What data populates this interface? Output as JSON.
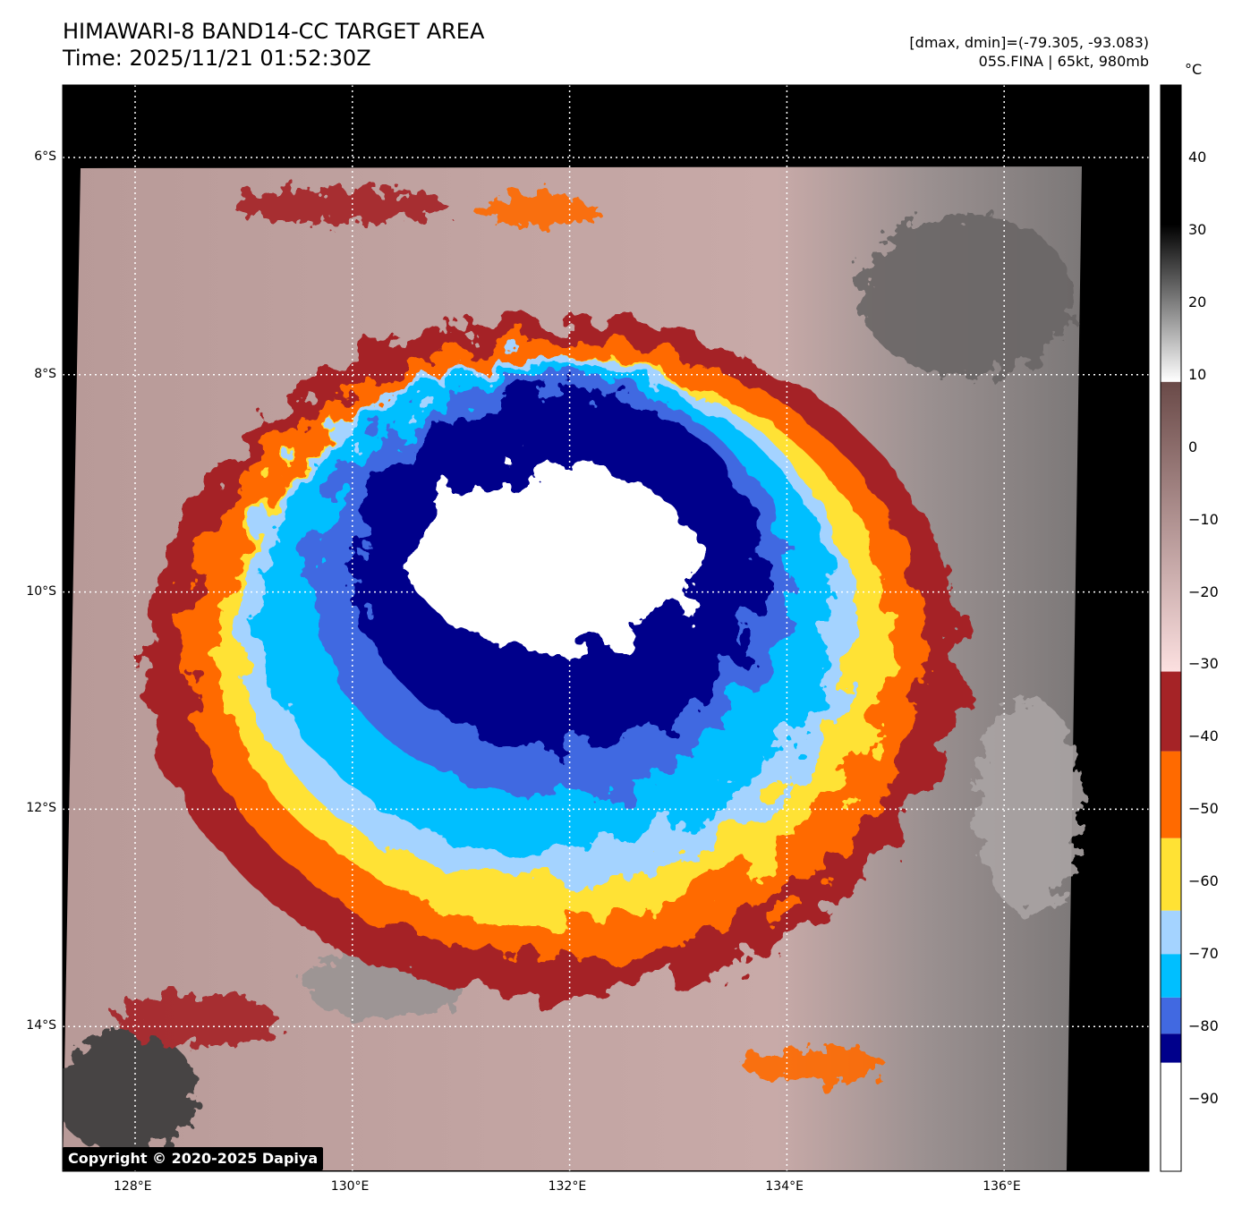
{
  "header": {
    "title": "HIMAWARI-8 BAND14-CC TARGET AREA",
    "time": "Time: 2025/11/21 01:52:30Z",
    "range_text": "[dmax, dmin]=(-79.305, -93.083)",
    "storm_text": "05S.FINA | 65kt, 980mb"
  },
  "map": {
    "lon_ticks": [
      {
        "value": 128,
        "label": "128°E"
      },
      {
        "value": 130,
        "label": "130°E"
      },
      {
        "value": 132,
        "label": "132°E"
      },
      {
        "value": 134,
        "label": "134°E"
      },
      {
        "value": 136,
        "label": "136°E"
      }
    ],
    "lat_ticks": [
      {
        "value": -6,
        "label": "6°S"
      },
      {
        "value": -8,
        "label": "8°S"
      },
      {
        "value": -10,
        "label": "10°S"
      },
      {
        "value": -12,
        "label": "12°S"
      },
      {
        "value": -14,
        "label": "14°S"
      }
    ],
    "copyright": "Copyright © 2020-2025 Dapiya"
  },
  "colorbar": {
    "unit": "°C",
    "range": [
      -100,
      50
    ],
    "ticks": [
      {
        "value": 40,
        "label": "40"
      },
      {
        "value": 30,
        "label": "30"
      },
      {
        "value": 20,
        "label": "20"
      },
      {
        "value": 10,
        "label": "10"
      },
      {
        "value": 0,
        "label": "0"
      },
      {
        "value": -10,
        "label": "−10"
      },
      {
        "value": -20,
        "label": "−20"
      },
      {
        "value": -30,
        "label": "−30"
      },
      {
        "value": -40,
        "label": "−40"
      },
      {
        "value": -50,
        "label": "−50"
      },
      {
        "value": -60,
        "label": "−60"
      },
      {
        "value": -70,
        "label": "−70"
      },
      {
        "value": -80,
        "label": "−80"
      },
      {
        "value": -90,
        "label": "−90"
      }
    ],
    "segments": [
      {
        "from": -100,
        "to": -85,
        "color": "#ffffff"
      },
      {
        "from": -85,
        "to": -81,
        "color": "#00008b"
      },
      {
        "from": -81,
        "to": -76,
        "color": "#4169e1"
      },
      {
        "from": -76,
        "to": -70,
        "color": "#00bfff"
      },
      {
        "from": -70,
        "to": -64,
        "color": "#a4d3ff"
      },
      {
        "from": -64,
        "to": -54,
        "color": "#ffe234"
      },
      {
        "from": -54,
        "to": -42,
        "color": "#ff6a00"
      },
      {
        "from": -42,
        "to": -31,
        "color": "#a52326"
      }
    ]
  }
}
